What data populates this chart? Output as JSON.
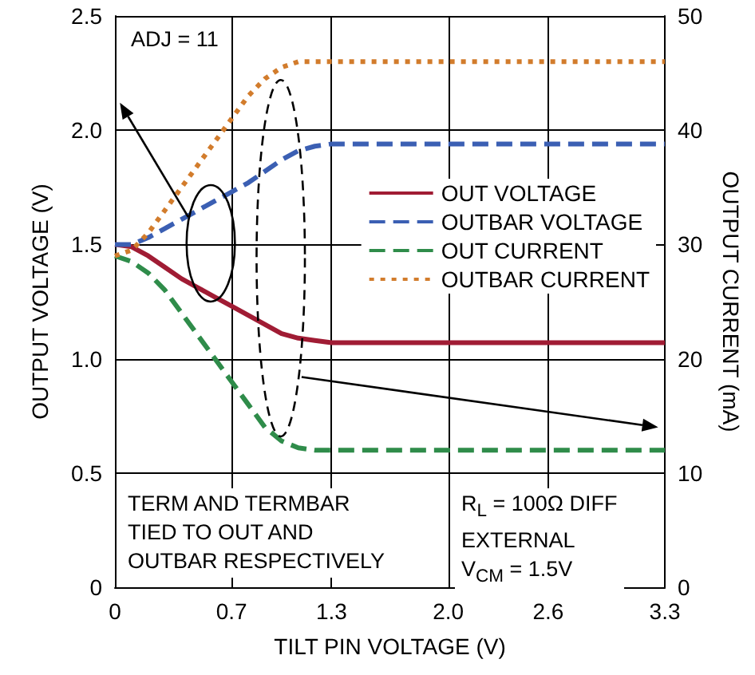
{
  "chart_data": {
    "type": "line",
    "xlabel": "TILT PIN VOLTAGE (V)",
    "ylabel": "OUTPUT VOLTAGE (V)",
    "y2label": "OUTPUT CURRENT (mA)",
    "x": [
      0,
      0.1,
      0.2,
      0.3,
      0.4,
      0.5,
      0.6,
      0.7,
      0.8,
      0.9,
      1.0,
      1.1,
      1.2,
      1.3,
      3.3
    ],
    "series": [
      {
        "name": "OUT VOLTAGE",
        "color": "#a01c34",
        "line_style": "solid",
        "values": [
          1.5,
          1.49,
          1.45,
          1.4,
          1.35,
          1.31,
          1.27,
          1.23,
          1.19,
          1.15,
          1.11,
          1.09,
          1.08,
          1.07,
          1.07
        ]
      },
      {
        "name": "OUTBAR VOLTAGE",
        "color": "#3b5fb3",
        "line_style": "dashed",
        "values": [
          1.5,
          1.5,
          1.53,
          1.57,
          1.61,
          1.65,
          1.69,
          1.73,
          1.77,
          1.82,
          1.87,
          1.91,
          1.93,
          1.94,
          1.94
        ]
      },
      {
        "name": "OUT CURRENT",
        "color": "#2f8c4a",
        "line_style": "dashed",
        "axis": "y2",
        "values": [
          29,
          28.5,
          27.5,
          26,
          24,
          22,
          20,
          18,
          16,
          14,
          12.8,
          12.2,
          12,
          12,
          12
        ]
      },
      {
        "name": "OUTBAR CURRENT",
        "color": "#d27c2c",
        "line_style": "dotted",
        "axis": "y2",
        "values": [
          29,
          29.5,
          31,
          33,
          35,
          37,
          39,
          41,
          43,
          44.5,
          45.5,
          46,
          46,
          46,
          46
        ]
      }
    ],
    "xlim": [
      0,
      3.3
    ],
    "xticks": [
      0,
      0.7,
      1.3,
      {
        "value": 2,
        "label": "2.0"
      },
      2.6,
      3.3
    ],
    "ylim": [
      0,
      2.5
    ],
    "yticks": [
      0,
      0.5,
      {
        "value": 1,
        "label": "1.0"
      },
      1.5,
      {
        "value": 2,
        "label": "2.0"
      },
      2.5
    ],
    "y2lim": [
      0,
      50
    ],
    "y2ticks": [
      0,
      10,
      20,
      30,
      40,
      50
    ],
    "grid": true,
    "legend": "right",
    "marker": "none",
    "annotations": [
      "ADJ = 11",
      "TERM AND TERMBAR\nTIED TO OUT AND\nOUTBAR RESPECTIVELY",
      "R$_{L}$ = 100Ω DIFF\nEXTERNAL\nV$_{CM}$ = 1.5V"
    ]
  }
}
